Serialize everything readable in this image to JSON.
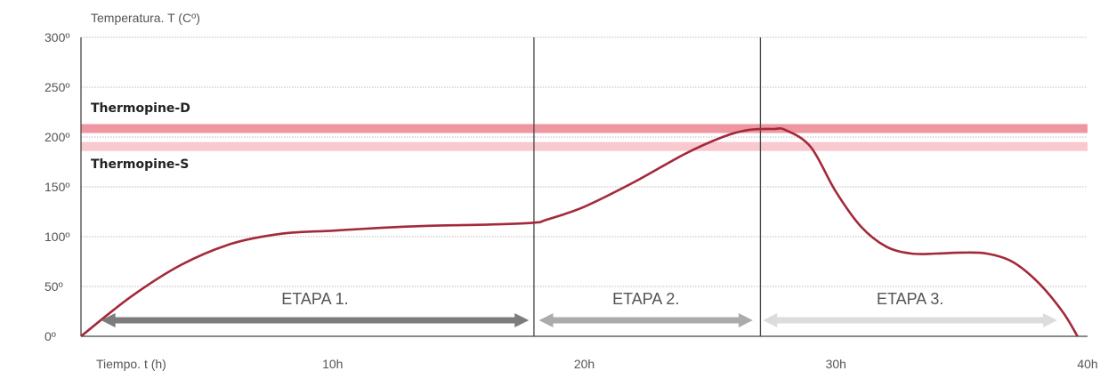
{
  "chart_data": {
    "type": "line",
    "ylabel": "Temperatura. T (Cº)",
    "xlabel": "Tiempo. t (h)",
    "xlim": [
      0,
      40
    ],
    "ylim": [
      0,
      300
    ],
    "y_ticks": [
      {
        "value": 0,
        "label": "0º"
      },
      {
        "value": 50,
        "label": "50º"
      },
      {
        "value": 100,
        "label": "100º"
      },
      {
        "value": 150,
        "label": "150º"
      },
      {
        "value": 200,
        "label": "200º"
      },
      {
        "value": 250,
        "label": "250º"
      },
      {
        "value": 300,
        "label": "300º"
      }
    ],
    "x_ticks": [
      {
        "value": 10,
        "label": "10h"
      },
      {
        "value": 20,
        "label": "20h"
      },
      {
        "value": 30,
        "label": "30h"
      },
      {
        "value": 40,
        "label": "40h"
      }
    ],
    "grid": true,
    "series": [
      {
        "color": "#a3293a",
        "x": [
          0,
          2,
          4,
          6,
          8,
          10,
          12,
          14,
          16,
          18,
          18.5,
          20,
          22,
          24,
          25.5,
          26.5,
          27.5,
          28,
          29,
          30,
          31,
          32,
          33,
          34,
          35,
          36,
          37,
          38,
          39,
          39.6
        ],
        "y": [
          0,
          40,
          72,
          93,
          103,
          106,
          109,
          111,
          112,
          114,
          117,
          130,
          155,
          183,
          200,
          207,
          208,
          207,
          190,
          145,
          110,
          90,
          83,
          83,
          84,
          83,
          75,
          55,
          25,
          0
        ]
      }
    ],
    "bands": [
      {
        "name": "Thermopine-D",
        "y_range": [
          204,
          213
        ],
        "color": "#ee97a1"
      },
      {
        "name": "Thermopine-S",
        "y_range": [
          186,
          195
        ],
        "color": "#f8c9cf"
      }
    ],
    "stages": [
      {
        "label": "ETAPA 1.",
        "x_range": [
          0.8,
          17.8
        ],
        "color": "#7c7c7c"
      },
      {
        "label": "ETAPA 2.",
        "x_range": [
          18.2,
          26.7
        ],
        "color": "#ababab"
      },
      {
        "label": "ETAPA 3.",
        "x_range": [
          27.1,
          38.8
        ],
        "color": "#dcdcdc"
      }
    ],
    "stage_boundaries": [
      18,
      27
    ]
  }
}
